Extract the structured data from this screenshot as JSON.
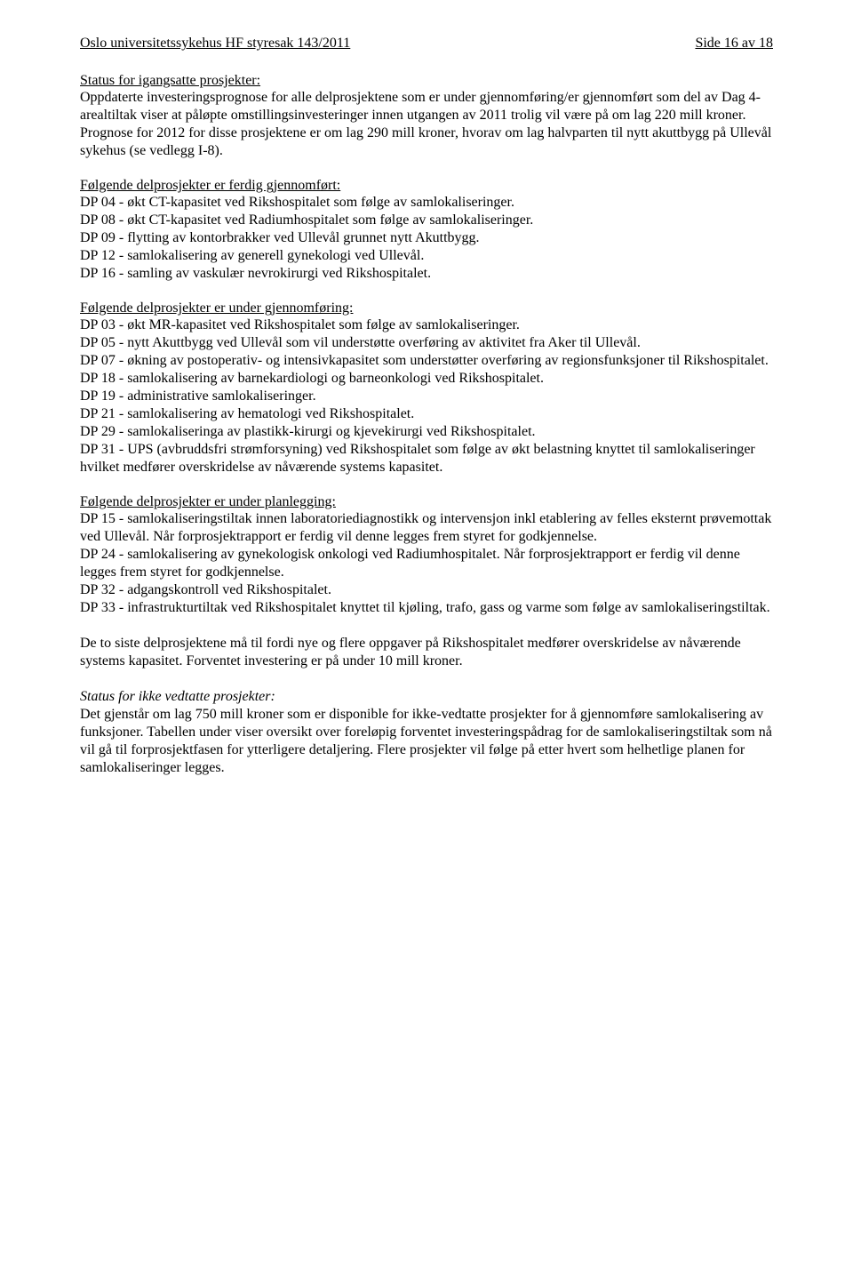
{
  "header": {
    "left": "Oslo universitetssykehus HF styresak 143/2011",
    "right": "Side 16 av 18"
  },
  "intro": {
    "title": "Status for igangsatte prosjekter:",
    "body": "Oppdaterte investeringsprognose for alle delprosjektene som er under gjennomføring/er gjennomført som del av Dag 4-arealtiltak viser at påløpte omstillingsinvesteringer innen utgangen av 2011 trolig vil være på om lag 220 mill kroner. Prognose for 2012 for disse prosjektene er om lag 290 mill kroner, hvorav om lag halvparten til nytt akuttbygg på Ullevål sykehus (se vedlegg I-8)."
  },
  "completed": {
    "title": "Følgende delprosjekter er ferdig gjennomført:",
    "items": [
      "DP 04 - økt CT-kapasitet ved Rikshospitalet som følge av samlokaliseringer.",
      "DP 08 - økt CT-kapasitet ved Radiumhospitalet som følge av samlokaliseringer.",
      "DP 09 - flytting av kontorbrakker ved Ullevål grunnet nytt Akuttbygg.",
      "DP 12 - samlokalisering av generell gynekologi ved Ullevål.",
      "DP 16 - samling av vaskulær nevrokirurgi ved Rikshospitalet."
    ]
  },
  "inprogress": {
    "title": "Følgende delprosjekter er under gjennomføring:",
    "items": [
      "DP 03 - økt MR-kapasitet ved Rikshospitalet som følge av samlokaliseringer.",
      "DP 05 - nytt Akuttbygg ved Ullevål som vil understøtte overføring av aktivitet fra Aker til Ullevål.",
      "DP 07 - økning av postoperativ- og intensivkapasitet som understøtter overføring av regionsfunksjoner til Rikshospitalet.",
      "DP 18 - samlokalisering av barnekardiologi og barneonkologi ved Rikshospitalet.",
      "DP 19 - administrative samlokaliseringer.",
      "DP 21 - samlokalisering av hematologi ved Rikshospitalet.",
      "DP 29 - samlokaliseringa av plastikk-kirurgi og kjevekirurgi ved Rikshospitalet.",
      "DP 31 - UPS (avbruddsfri strømforsyning) ved Rikshospitalet som følge av økt belastning knyttet til samlokaliseringer hvilket medfører overskridelse av nåværende systems kapasitet."
    ]
  },
  "planning": {
    "title": "Følgende delprosjekter er under planlegging:",
    "items": [
      "DP 15 - samlokaliseringstiltak innen laboratoriediagnostikk og intervensjon inkl etablering av felles eksternt prøvemottak ved Ullevål.  Når forprosjektrapport er ferdig vil denne legges frem styret for godkjennelse.",
      "DP 24 - samlokalisering av gynekologisk onkologi ved Radiumhospitalet. Når forprosjektrapport er ferdig vil denne legges frem styret for godkjennelse.",
      "DP 32 - adgangskontroll ved Rikshospitalet.",
      "DP 33 - infrastrukturtiltak ved Rikshospitalet knyttet til kjøling, trafo, gass og varme som følge av samlokaliseringstiltak."
    ]
  },
  "closing": {
    "para1": "De to siste delprosjektene må til fordi nye og flere oppgaver på Rikshospitalet medfører overskridelse av nåværende systems kapasitet. Forventet investering er på under 10 mill kroner.",
    "status_italic": "Status for ikke vedtatte prosjekter:",
    "para2": "Det gjenstår om lag 750 mill kroner som er disponible for ikke-vedtatte prosjekter for å gjennomføre samlokalisering av funksjoner. Tabellen under viser oversikt over foreløpig forventet investeringspådrag for de samlokaliseringstiltak som nå vil gå til forprosjektfasen for ytterligere detaljering. Flere prosjekter vil følge på etter hvert som helhetlige planen for samlokaliseringer legges."
  }
}
